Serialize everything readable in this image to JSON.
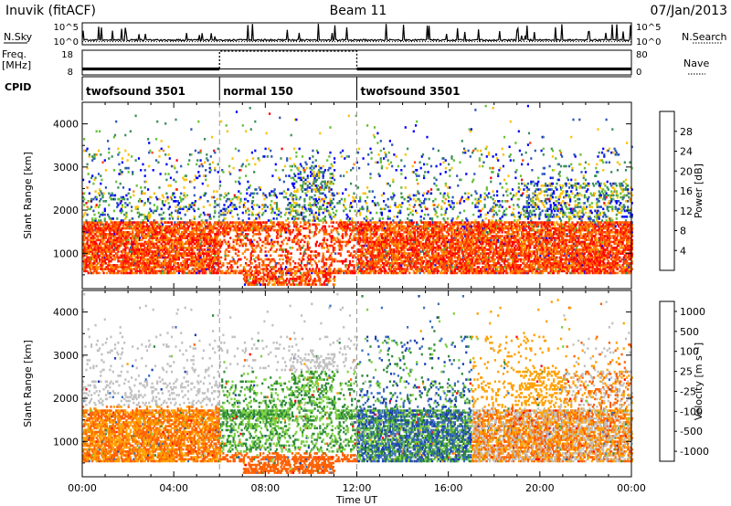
{
  "header": {
    "station": "Inuvik (fitACF)",
    "beam": "Beam 11",
    "date": "07/Jan/2013"
  },
  "panel_labels": {
    "nsky": "N.Sky",
    "nsearch": "N.Search",
    "freq_line1": "Freq.",
    "freq_line2": "[MHz]",
    "nave": "Nave",
    "cpid": "CPID"
  },
  "chart_data": [
    {
      "type": "line",
      "name": "noise-panel",
      "x_range": [
        0,
        24
      ],
      "left_axis": {
        "label": "N.Sky",
        "ticks": [
          "10^5",
          "10^0"
        ]
      },
      "right_axis": {
        "label": "N.Search",
        "ticks": [
          "10^5",
          "10^0"
        ]
      },
      "series": [
        {
          "name": "N.Sky",
          "style": "solid",
          "baseline_log10": 0.9,
          "note_values": "continuous noise trace near 10^0–10^1 with frequent spikes toward 10^5"
        },
        {
          "name": "N.Search",
          "style": "dotted",
          "baseline_log10": 0.9
        }
      ]
    },
    {
      "type": "line",
      "name": "freq-nave-panel",
      "x_range": [
        0,
        24
      ],
      "left_axis": {
        "label": "Freq. [MHz]",
        "ticks": [
          "18",
          "8"
        ],
        "range": [
          8,
          18
        ]
      },
      "right_axis": {
        "label": "Nave",
        "ticks": [
          "80",
          "0"
        ],
        "range": [
          0,
          80
        ]
      },
      "series": [
        {
          "name": "Freq.",
          "style": "solid-band",
          "segments": [
            {
              "x": [
                0,
                6
              ],
              "low": 9.8,
              "high": 11.0
            },
            {
              "x": [
                6,
                12
              ],
              "low": 10.4,
              "high": 10.6
            },
            {
              "x": [
                12,
                24
              ],
              "low": 9.8,
              "high": 11.0
            }
          ]
        },
        {
          "name": "Nave",
          "style": "dotted",
          "segments": [
            {
              "x": [
                6,
                12
              ],
              "value": 80
            }
          ]
        }
      ]
    },
    {
      "type": "table",
      "name": "cpid-bar",
      "segments": [
        {
          "start": 0,
          "end": 6,
          "label": "twofsound 3501"
        },
        {
          "start": 6,
          "end": 12,
          "label": "normal 150"
        },
        {
          "start": 12,
          "end": 24,
          "label": "twofsound 3501"
        }
      ]
    },
    {
      "type": "heatmap",
      "name": "power-panel",
      "x_range": [
        0,
        24
      ],
      "y_range": [
        180,
        4500
      ],
      "ylabel": "Slant Range [km]",
      "yticks": [
        1000,
        2000,
        3000,
        4000
      ],
      "colorbar": {
        "label": "Power [dB]",
        "ticks": [
          "4",
          "8",
          "12",
          "16",
          "20",
          "24",
          "28"
        ],
        "colors": [
          "#0000ff",
          "#2b55b8",
          "#3a8f5a",
          "#64c232",
          "#ffc000",
          "#ff8800",
          "#ff4400",
          "#ff0000"
        ]
      },
      "features": [
        {
          "x": [
            0,
            24
          ],
          "range_km": [
            500,
            1700
          ],
          "level": "high (24–30 dB)"
        },
        {
          "x": [
            0,
            24
          ],
          "range_km": [
            1700,
            3300
          ],
          "level": "low-moderate (4–16 dB)"
        },
        {
          "x": [
            6,
            12
          ],
          "range_km": [
            200,
            700
          ],
          "level": "high (24–30 dB)"
        }
      ]
    },
    {
      "type": "heatmap",
      "name": "velocity-panel",
      "x_range": [
        0,
        24
      ],
      "y_range": [
        180,
        4500
      ],
      "ylabel": "Slant Range [km]",
      "yticks": [
        1000,
        2000,
        3000,
        4000
      ],
      "colorbar": {
        "label": "Velocity [m s⁻¹]",
        "ticks": [
          "1000",
          "500",
          "100",
          "25",
          "-25",
          "-100",
          "-500",
          "-1000"
        ],
        "colors": [
          "#1c3fb0",
          "#3a70c0",
          "#2f8a3a",
          "#7cd040",
          "#c0c0c0",
          "#ffa000",
          "#ff6000",
          "#ff0000"
        ]
      },
      "features": [
        {
          "x": [
            0,
            6
          ],
          "range_km": [
            600,
            1700
          ],
          "level": "negative (-100 to -500 m/s)"
        },
        {
          "x": [
            6,
            12
          ],
          "range_km": [
            600,
            2000
          ],
          "level": "positive (25–500 m/s)"
        },
        {
          "x": [
            12,
            17
          ],
          "range_km": [
            600,
            1800
          ],
          "level": "mixed, strong positive"
        },
        {
          "x": [
            17,
            24
          ],
          "range_km": [
            600,
            2600
          ],
          "level": "negative (-100 to -500 m/s)"
        }
      ]
    }
  ],
  "x_axis": {
    "label": "Time UT",
    "ticks": [
      "00:00",
      "04:00",
      "08:00",
      "12:00",
      "16:00",
      "20:00",
      "00:00"
    ]
  },
  "power_colorbar_label": "Power [dB]",
  "velocity_colorbar_label": "Velocity [m s⁻¹]"
}
